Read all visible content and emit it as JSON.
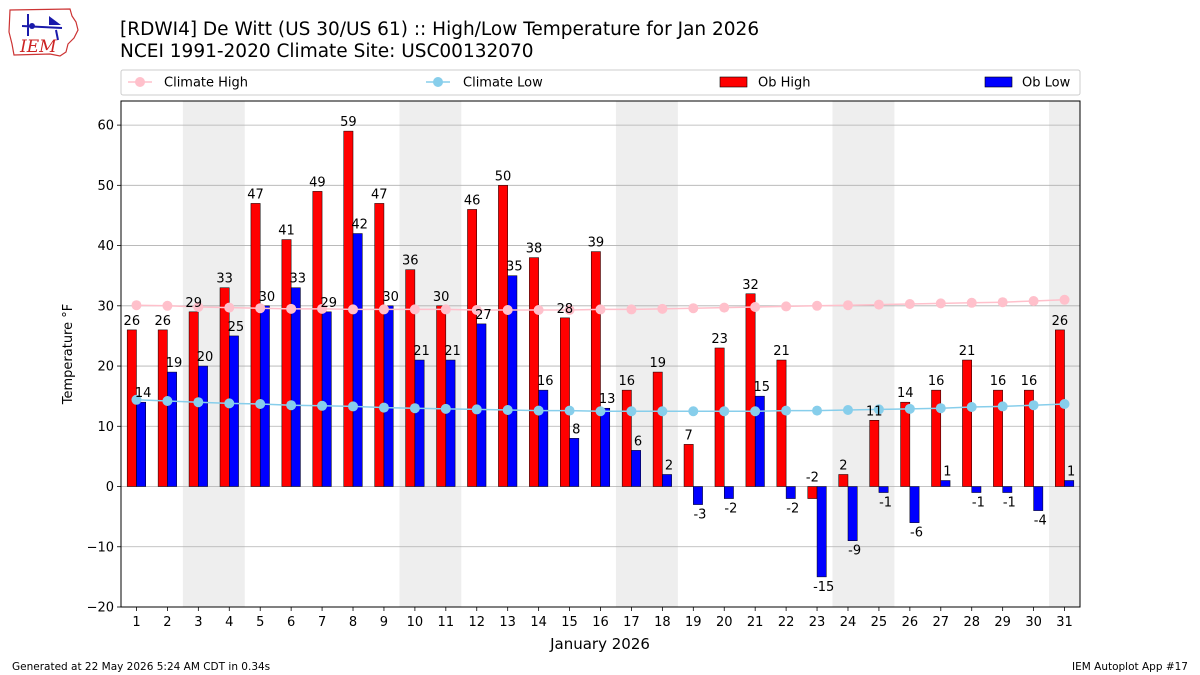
{
  "logo": {
    "text": "IEM"
  },
  "title_line1": "[RDWI4] De Witt (US 30/US 61) :: High/Low Temperature for Jan 2026",
  "title_line2": "NCEI 1991-2020 Climate Site: USC00132070",
  "footer_left": "Generated at 22 May 2026 5:24 AM CDT in 0.34s",
  "footer_right": "IEM Autoplot App #17",
  "colors": {
    "ob_high": "#ff0000",
    "ob_low": "#0000ff",
    "climate_high": "#ffc0cb",
    "climate_low": "#87ceeb",
    "weekend_band": "#eeeeee"
  },
  "chart_data": {
    "type": "bar",
    "xlabel": "January 2026",
    "ylabel": "Temperature °F",
    "ylim": [
      -20,
      64
    ],
    "yticks": [
      -20,
      -10,
      0,
      10,
      20,
      30,
      40,
      50,
      60
    ],
    "grid": true,
    "legend_position": "top",
    "categories": [
      1,
      2,
      3,
      4,
      5,
      6,
      7,
      8,
      9,
      10,
      11,
      12,
      13,
      14,
      15,
      16,
      17,
      18,
      19,
      20,
      21,
      22,
      23,
      24,
      25,
      26,
      27,
      28,
      29,
      30,
      31
    ],
    "shaded_days": [
      [
        3,
        4
      ],
      [
        10,
        11
      ],
      [
        17,
        18
      ],
      [
        24,
        25
      ],
      [
        31,
        31
      ]
    ],
    "series": [
      {
        "name": "Ob High",
        "type": "bar",
        "color": "#ff0000",
        "values": [
          26,
          26,
          29,
          33,
          47,
          41,
          49,
          59,
          47,
          36,
          30,
          46,
          50,
          38,
          28,
          39,
          16,
          19,
          7,
          23,
          32,
          21,
          -2,
          2,
          11,
          14,
          16,
          21,
          16,
          16,
          26
        ]
      },
      {
        "name": "Ob Low",
        "type": "bar",
        "color": "#0000ff",
        "values": [
          14,
          19,
          20,
          25,
          30,
          33,
          29,
          42,
          30,
          21,
          21,
          27,
          35,
          16,
          8,
          13,
          6,
          2,
          -3,
          -2,
          15,
          -2,
          -15,
          -9,
          -1,
          -6,
          1,
          -1,
          -1,
          -4,
          1
        ]
      },
      {
        "name": "Climate High",
        "type": "line",
        "color": "#ffc0cb",
        "values": [
          30.1,
          30.0,
          29.8,
          29.7,
          29.6,
          29.5,
          29.5,
          29.4,
          29.4,
          29.4,
          29.4,
          29.3,
          29.3,
          29.3,
          29.3,
          29.4,
          29.4,
          29.5,
          29.6,
          29.7,
          29.8,
          29.9,
          30.0,
          30.1,
          30.2,
          30.3,
          30.4,
          30.5,
          30.6,
          30.8,
          31.0
        ]
      },
      {
        "name": "Climate Low",
        "type": "line",
        "color": "#87ceeb",
        "values": [
          14.4,
          14.2,
          14.0,
          13.8,
          13.7,
          13.5,
          13.4,
          13.3,
          13.1,
          13.0,
          12.9,
          12.8,
          12.7,
          12.6,
          12.6,
          12.5,
          12.5,
          12.5,
          12.5,
          12.5,
          12.5,
          12.6,
          12.6,
          12.7,
          12.8,
          12.9,
          13.0,
          13.2,
          13.3,
          13.5,
          13.7
        ]
      }
    ]
  }
}
